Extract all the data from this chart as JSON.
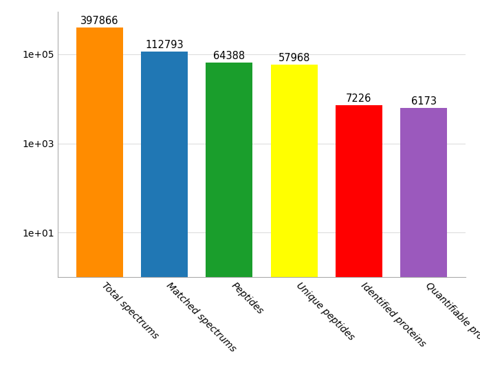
{
  "categories": [
    "Total spectrums",
    "Matched spectrums",
    "Peptides",
    "Unique peptides",
    "Identified proteins",
    "Quantifiable proteins"
  ],
  "values": [
    397866,
    112793,
    64388,
    57968,
    7226,
    6173
  ],
  "bar_colors": [
    "#FF8C00",
    "#2077B4",
    "#1A9E2C",
    "#FFFF00",
    "#FF0000",
    "#9B59BD"
  ],
  "bar_labels": [
    "397866",
    "112793",
    "64388",
    "57968",
    "7226",
    "6173"
  ],
  "ylim_low": 1,
  "ylim_high": 900000,
  "yticks": [
    10,
    1000,
    100000
  ],
  "ytick_labels": [
    "1e+01",
    "1e+03",
    "1e+05"
  ],
  "background_color": "#FFFFFF",
  "grid_color": "#DDDDDD",
  "annotation_fontsize": 10.5,
  "tick_fontsize": 10,
  "xticklabel_rotation": -45
}
